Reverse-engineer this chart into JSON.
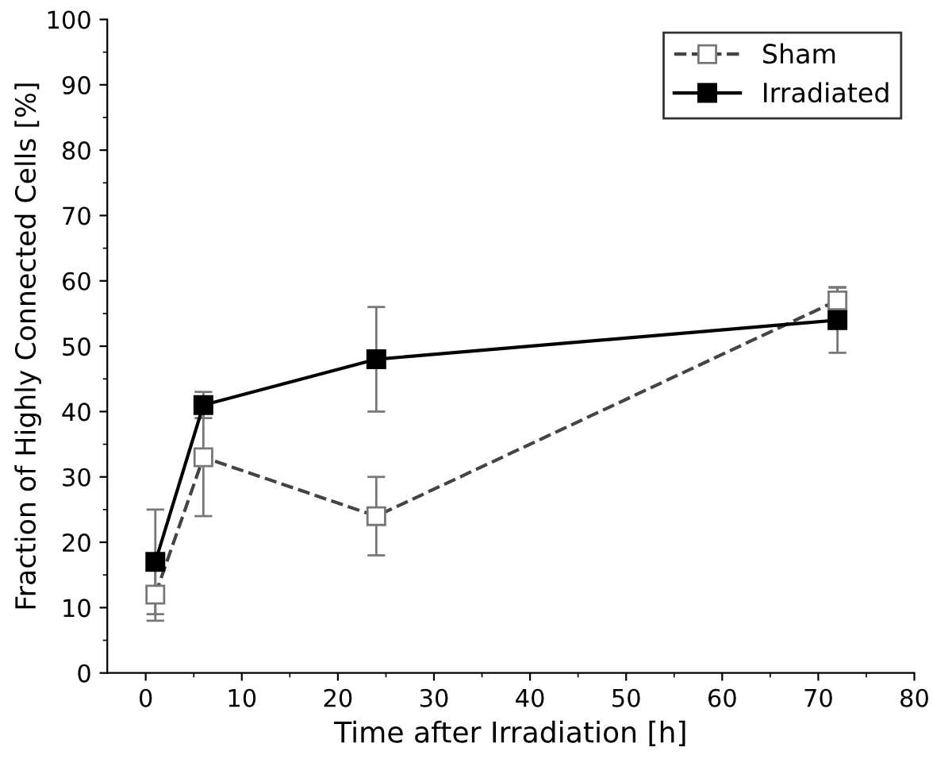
{
  "chart_data": {
    "type": "line",
    "xlabel": "Time after Irradiation [h]",
    "ylabel": "Fraction of Highly Connected Cells [%]",
    "x": [
      1,
      6,
      24,
      72
    ],
    "xlim": [
      -4,
      80
    ],
    "xticks": [
      0,
      10,
      20,
      30,
      40,
      50,
      60,
      70,
      80
    ],
    "ylim": [
      0,
      100
    ],
    "yticks": [
      0,
      10,
      20,
      30,
      40,
      50,
      60,
      70,
      80,
      90,
      100
    ],
    "grid": false,
    "legend": "top right",
    "marker": "square",
    "series": [
      {
        "name": "Sham",
        "color": "#444444",
        "line_style": "dashed",
        "values": [
          12,
          33,
          24,
          57
        ],
        "errors": [
          4,
          9,
          6,
          2
        ]
      },
      {
        "name": "Irradiated",
        "color": "#000000",
        "line_style": "solid",
        "values": [
          17,
          41,
          48,
          54
        ],
        "errors": [
          8,
          2,
          8,
          5
        ]
      }
    ]
  }
}
